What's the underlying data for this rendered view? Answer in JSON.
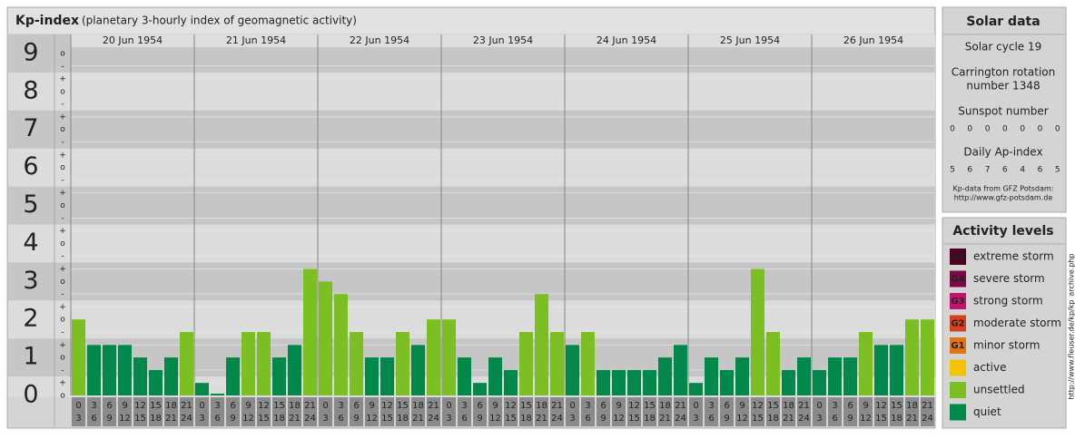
{
  "header": {
    "title": "Kp-index",
    "subtitle": "(planetary 3-hourly index of geomagnetic activity)"
  },
  "chart_data": {
    "type": "bar",
    "days": [
      "20 Jun 1954",
      "21 Jun 1954",
      "22 Jun 1954",
      "23 Jun 1954",
      "24 Jun 1954",
      "25 Jun 1954",
      "26 Jun 1954"
    ],
    "hours": [
      "0",
      "3",
      "6",
      "9",
      "12",
      "15",
      "18",
      "21",
      "24"
    ],
    "values": [
      2,
      1.33,
      1.33,
      1.33,
      1,
      0.67,
      1,
      1.67,
      0.33,
      0,
      1,
      1.67,
      1.67,
      1,
      1.33,
      3.33,
      3,
      2.67,
      1.67,
      1,
      1,
      1.67,
      1.33,
      2,
      2,
      1,
      0.33,
      1,
      0.67,
      1.67,
      2.67,
      1.67,
      1.33,
      1.67,
      0.67,
      0.67,
      0.67,
      0.67,
      1,
      1.33,
      0.33,
      1,
      0.67,
      1,
      3.33,
      1.67,
      0.67,
      1,
      0.67,
      1,
      1,
      1.67,
      1.33,
      1.33,
      2,
      2
    ],
    "bar_colors": [
      "#7cbf23",
      "#00874a",
      "#00874a",
      "#00874a",
      "#00874a",
      "#00874a",
      "#00874a",
      "#7cbf23",
      "#00874a",
      "#00874a",
      "#00874a",
      "#7cbf23",
      "#7cbf23",
      "#00874a",
      "#00874a",
      "#7cbf23",
      "#7cbf23",
      "#7cbf23",
      "#7cbf23",
      "#00874a",
      "#00874a",
      "#7cbf23",
      "#00874a",
      "#7cbf23",
      "#7cbf23",
      "#00874a",
      "#00874a",
      "#00874a",
      "#00874a",
      "#7cbf23",
      "#7cbf23",
      "#7cbf23",
      "#00874a",
      "#7cbf23",
      "#00874a",
      "#00874a",
      "#00874a",
      "#00874a",
      "#00874a",
      "#00874a",
      "#00874a",
      "#00874a",
      "#00874a",
      "#00874a",
      "#7cbf23",
      "#7cbf23",
      "#00874a",
      "#00874a",
      "#00874a",
      "#00874a",
      "#00874a",
      "#7cbf23",
      "#00874a",
      "#00874a",
      "#7cbf23",
      "#7cbf23"
    ],
    "ylim": [
      0,
      9.5
    ],
    "yticks": [
      0,
      1,
      2,
      3,
      4,
      5,
      6,
      7,
      8,
      9
    ],
    "minor_ticks": [
      {
        "value": 0,
        "label": "o"
      },
      {
        "value": 0.33,
        "label": "+"
      },
      {
        "value": 0.67,
        "label": "-"
      },
      {
        "value": 1,
        "label": "o"
      },
      {
        "value": 1.33,
        "label": "+"
      },
      {
        "value": 1.67,
        "label": "-"
      },
      {
        "value": 2,
        "label": "o"
      },
      {
        "value": 2.33,
        "label": "+"
      },
      {
        "value": 2.67,
        "label": "-"
      },
      {
        "value": 3,
        "label": "o"
      },
      {
        "value": 3.33,
        "label": "+"
      },
      {
        "value": 3.67,
        "label": "-"
      },
      {
        "value": 4,
        "label": "o"
      },
      {
        "value": 4.33,
        "label": "+"
      },
      {
        "value": 4.67,
        "label": "-"
      },
      {
        "value": 5,
        "label": "o"
      },
      {
        "value": 5.33,
        "label": "+"
      },
      {
        "value": 5.67,
        "label": "-"
      },
      {
        "value": 6,
        "label": "o"
      },
      {
        "value": 6.33,
        "label": "+"
      },
      {
        "value": 6.67,
        "label": "-"
      },
      {
        "value": 7,
        "label": "o"
      },
      {
        "value": 7.33,
        "label": "+"
      },
      {
        "value": 7.67,
        "label": "-"
      },
      {
        "value": 8,
        "label": "o"
      },
      {
        "value": 8.33,
        "label": "+"
      },
      {
        "value": 8.67,
        "label": "-"
      },
      {
        "value": 9,
        "label": "o"
      }
    ]
  },
  "solar_data": {
    "title": "Solar data",
    "solar_cycle": "Solar cycle 19",
    "carrington_1": "Carrington rotation",
    "carrington_2": "number 1348",
    "sunspot_title": "Sunspot number",
    "sunspot": [
      0,
      0,
      0,
      0,
      0,
      0,
      0
    ],
    "ap_title": "Daily Ap-index",
    "ap": [
      5,
      6,
      7,
      6,
      4,
      6,
      5
    ],
    "source_1": "Kp-data from GFZ Potsdam:",
    "source_2": "http://www.gfz-potsdam.de"
  },
  "activity_levels": {
    "title": "Activity levels",
    "items": [
      {
        "code": "G5",
        "label": "extreme storm",
        "color": "#4d0022"
      },
      {
        "code": "G4",
        "label": "severe storm",
        "color": "#7a0a45"
      },
      {
        "code": "G3",
        "label": "strong storm",
        "color": "#c3136e"
      },
      {
        "code": "G2",
        "label": "moderate storm",
        "color": "#d9401e"
      },
      {
        "code": "G1",
        "label": "minor storm",
        "color": "#e07514"
      },
      {
        "label": "active",
        "color": "#f5c400"
      },
      {
        "label": "unsettled",
        "color": "#7cbf23"
      },
      {
        "label": "quiet",
        "color": "#00874a"
      }
    ]
  },
  "source_url": "http://www.fleuser.de/kp/kp_archive.php"
}
